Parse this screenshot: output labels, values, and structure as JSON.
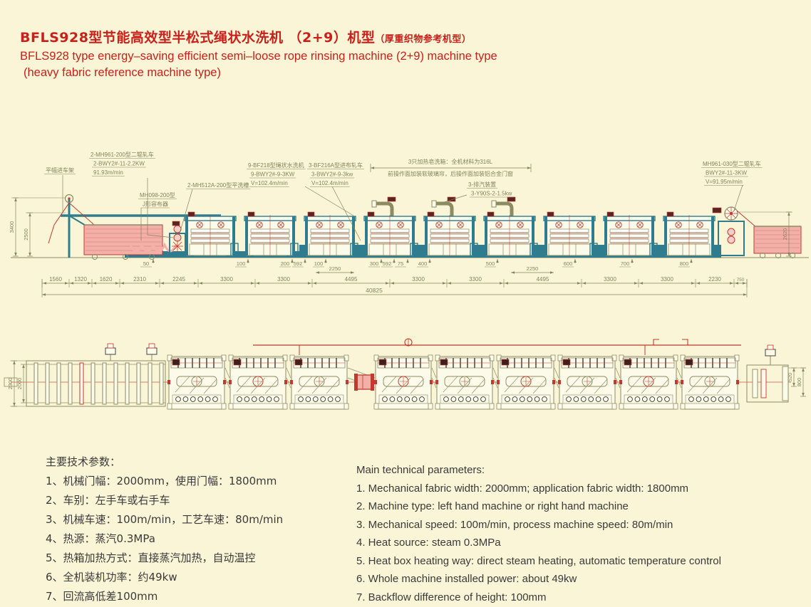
{
  "title": {
    "zh_main": "BFLS928型节能高效型半松式绳状水洗机 （2+9）机型",
    "zh_note": "（厚重织物参考机型）",
    "en_line1": "BFLS928 type energy–saving efficient semi–loose rope rinsing machine (2+9) machine type",
    "en_line2": "(heavy fabric reference machine type)"
  },
  "colors": {
    "background": "#FAF5D6",
    "title_red": "#C9201B",
    "line_olive": "#8C8C64",
    "dim_text": "#84845E",
    "teal": "#2E7C8E",
    "detail_red": "#C2392F",
    "pink": "#F2B0A8",
    "panel": "#FCFAE8"
  },
  "elevation": {
    "labels": {
      "feed_frame": "平幅进车架",
      "padder_left": [
        "2-MH961-200型二辊轧车",
        "2-BWY2#-11-2.2KW",
        "91.93m/min"
      ],
      "flat_washer": "2-MH512A-200型平洗槽",
      "scray": [
        "MH098-200型",
        "J形容布器"
      ],
      "rope_washer": [
        "9-BF218型绳状水洗机",
        "9-BWY2#-9-3KW",
        "V=102.4m/min"
      ],
      "feed_padder": [
        "3-BF216A型进布轧车",
        "3-BWY2#-9-3kw",
        "V=102.4m/min"
      ],
      "soap_note1": "3只加热皂洗箱：全机材料为316L",
      "soap_note2": "前操作面加装软玻璃帘，后操作面加装铝合金门窗",
      "exhaust": [
        "3-排汽装置",
        "3-Y90S-2-1.5kw"
      ],
      "out_padder": [
        "MH961-030型二辊轧车",
        "BWY2#-11-3KW",
        "V=91.95m/min"
      ]
    },
    "dims_vertical_left": [
      "3400",
      "2500"
    ],
    "dims_vertical_right": [
      "2620"
    ],
    "dims_small": [
      "50",
      "100",
      "200",
      "592",
      "100",
      "300",
      "592",
      "75",
      "400",
      "500",
      "600",
      "700",
      "800"
    ],
    "dims_mid": [
      "2250",
      "2250"
    ],
    "dims_chain": [
      "1560",
      "1320",
      "1620",
      "2310",
      "2245",
      "3300",
      "3300",
      "4495",
      "3300",
      "3300",
      "4495",
      "3300",
      "3300",
      "2230",
      "750"
    ],
    "dim_total": "40825"
  },
  "plan": {
    "dims_left": [
      "2300",
      "2000"
    ],
    "dims_right": [
      "520",
      "800"
    ]
  },
  "params_zh": {
    "heading": "主要技术参数：",
    "items": [
      "1、机械门幅：2000mm，使用门幅：1800mm",
      "2、车别：左手车或右手车",
      "3、机械车速：100m/min，工艺车速：80m/min",
      "4、热源：蒸汽0.3MPa",
      "5、热箱加热方式：直接蒸汽加热，自动温控",
      "6、全机装机功率：约49kw",
      "7、回流高低差100mm"
    ]
  },
  "params_en": {
    "heading": "Main technical parameters:",
    "items": [
      "1. Mechanical fabric width: 2000mm; application fabric width: 1800mm",
      "2. Machine type: left hand machine or right hand machine",
      "3. Mechanical speed: 100m/min, process machine speed: 80m/min",
      "4. Heat source: steam 0.3MPa",
      "5. Heat box heating way: direct steam heating, automatic temperature control",
      "6. Whole machine installed power: about 49kw",
      "7. Backflow difference of height: 100mm"
    ]
  }
}
